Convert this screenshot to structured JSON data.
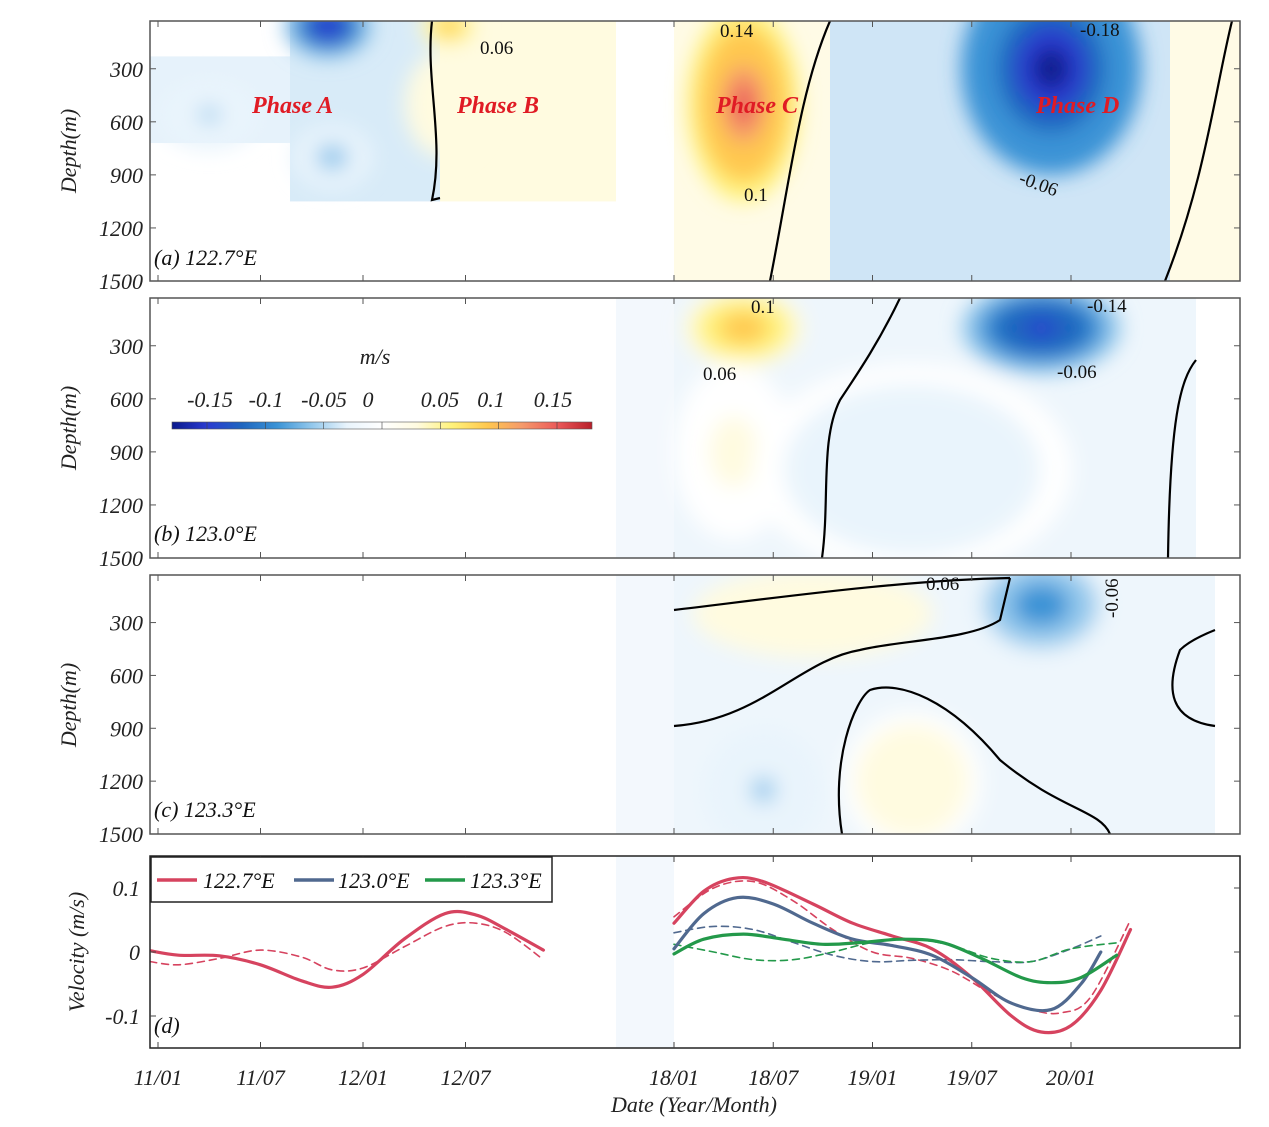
{
  "chart_data": [
    {
      "type": "heatmap",
      "panel": "a",
      "label": "(a) 122.7°E",
      "ylabel": "Depth(m)",
      "yticks": [
        "300",
        "600",
        "900",
        "1200",
        "1500"
      ],
      "ylim": [
        30,
        1500
      ],
      "y_reversed": true,
      "phases": [
        "Phase A",
        "Phase B",
        "Phase C",
        "Phase D"
      ],
      "contour_labels": [
        "0.06",
        "0.14",
        "0.1",
        "-0.18",
        "-0.06"
      ],
      "blobs": [
        {
          "t": 2011.25,
          "depth": 560,
          "value": -0.05,
          "wt": 0.25,
          "wd": 200
        },
        {
          "t": 2011.83,
          "depth": 60,
          "value": -0.16,
          "wt": 0.22,
          "wd": 180
        },
        {
          "t": 2011.85,
          "depth": 800,
          "value": -0.06,
          "wt": 0.2,
          "wd": 180
        },
        {
          "t": 2012.42,
          "depth": 60,
          "value": 0.1,
          "wt": 0.15,
          "wd": 120
        },
        {
          "t": 2012.4,
          "depth": 500,
          "value": 0.04,
          "wt": 0.2,
          "wd": 300
        },
        {
          "t": 2018.35,
          "depth": 500,
          "value": 0.14,
          "wt": 0.28,
          "wd": 550
        },
        {
          "t": 2019.9,
          "depth": 300,
          "value": -0.18,
          "wt": 0.45,
          "wd": 600
        }
      ]
    },
    {
      "type": "heatmap",
      "panel": "b",
      "label": "(b) 123.0°E",
      "ylabel": "Depth(m)",
      "yticks": [
        "300",
        "600",
        "900",
        "1200",
        "1500"
      ],
      "ylim": [
        30,
        1500
      ],
      "y_reversed": true,
      "contour_labels": [
        "0.1",
        "0.06",
        "-0.14",
        "-0.06"
      ],
      "blobs": [
        {
          "t": 2018.35,
          "depth": 200,
          "value": 0.1,
          "wt": 0.3,
          "wd": 220
        },
        {
          "t": 2018.3,
          "depth": 900,
          "value": 0.02,
          "wt": 0.3,
          "wd": 500
        },
        {
          "t": 2019.85,
          "depth": 200,
          "value": -0.15,
          "wt": 0.4,
          "wd": 260
        },
        {
          "t": 2019.2,
          "depth": 1000,
          "value": -0.03,
          "wt": 0.8,
          "wd": 600
        }
      ]
    },
    {
      "type": "heatmap",
      "panel": "c",
      "label": "(c) 123.3°E",
      "ylabel": "Depth(m)",
      "yticks": [
        "300",
        "600",
        "900",
        "1200",
        "1500"
      ],
      "ylim": [
        30,
        1500
      ],
      "y_reversed": true,
      "contour_labels": [
        "0.06",
        "-0.06"
      ],
      "blobs": [
        {
          "t": 2018.7,
          "depth": 250,
          "value": 0.04,
          "wt": 0.6,
          "wd": 250
        },
        {
          "t": 2019.85,
          "depth": 200,
          "value": -0.1,
          "wt": 0.35,
          "wd": 300
        },
        {
          "t": 2018.45,
          "depth": 1250,
          "value": -0.05,
          "wt": 0.3,
          "wd": 350
        },
        {
          "t": 2019.2,
          "depth": 1200,
          "value": 0.03,
          "wt": 0.35,
          "wd": 400
        }
      ]
    },
    {
      "type": "line",
      "panel": "d",
      "label": "(d)",
      "ylabel": "Velocity (m/s)",
      "xlabel": "Date (Year/Month)",
      "ylim": [
        -0.15,
        0.15
      ],
      "yticks": [
        "0.1",
        "0",
        "-0.1"
      ],
      "ytick_values": [
        0.1,
        0,
        -0.1
      ],
      "xticks": [
        "11/01",
        "11/07",
        "12/01",
        "12/07",
        "18/01",
        "18/07",
        "19/01",
        "19/07",
        "20/01"
      ],
      "xtick_values": [
        2011.0,
        2011.5,
        2012.0,
        2012.5,
        2018.0,
        2018.5,
        2019.0,
        2019.5,
        2020.0
      ],
      "legend_placement": "top-left",
      "series": [
        {
          "name": "122.7°E",
          "color": "#d6435f",
          "style": "solid",
          "segments": [
            {
              "t": [
                2010.96,
                2011.1,
                2011.3,
                2011.5,
                2011.7,
                2011.85,
                2012.0,
                2012.2,
                2012.4,
                2012.55,
                2012.7,
                2012.88
              ],
              "v": [
                0.002,
                -0.005,
                -0.006,
                -0.02,
                -0.045,
                -0.055,
                -0.035,
                0.02,
                0.06,
                0.058,
                0.035,
                0.003
              ]
            },
            {
              "t": [
                2018.0,
                2018.15,
                2018.3,
                2018.45,
                2018.7,
                2018.9,
                2019.1,
                2019.3,
                2019.5,
                2019.7,
                2019.85,
                2020.0,
                2020.15,
                2020.3
              ],
              "v": [
                0.045,
                0.095,
                0.115,
                0.11,
                0.075,
                0.045,
                0.025,
                0.005,
                -0.04,
                -0.1,
                -0.125,
                -0.115,
                -0.06,
                0.035
              ]
            }
          ]
        },
        {
          "name": "122.7°E (dashed)",
          "color": "#d6435f",
          "style": "dashed",
          "segments": [
            {
              "t": [
                2010.96,
                2011.1,
                2011.3,
                2011.5,
                2011.7,
                2011.85,
                2012.0,
                2012.2,
                2012.4,
                2012.55,
                2012.7,
                2012.88
              ],
              "v": [
                -0.015,
                -0.02,
                -0.01,
                0.003,
                -0.008,
                -0.028,
                -0.025,
                0.008,
                0.04,
                0.045,
                0.03,
                -0.012
              ]
            },
            {
              "t": [
                2018.0,
                2018.2,
                2018.4,
                2018.6,
                2018.8,
                2019.0,
                2019.2,
                2019.4,
                2019.6,
                2019.8,
                2019.95,
                2020.1,
                2020.3
              ],
              "v": [
                0.055,
                0.1,
                0.11,
                0.08,
                0.035,
                0.0,
                -0.01,
                -0.03,
                -0.065,
                -0.09,
                -0.095,
                -0.07,
                0.05
              ]
            }
          ]
        },
        {
          "name": "123.0°E",
          "color": "#50698f",
          "style": "solid",
          "segments": [
            {
              "t": [
                2018.0,
                2018.15,
                2018.32,
                2018.5,
                2018.7,
                2018.9,
                2019.1,
                2019.3,
                2019.5,
                2019.7,
                2019.9,
                2020.05,
                2020.15
              ],
              "v": [
                0.005,
                0.06,
                0.085,
                0.075,
                0.045,
                0.02,
                0.01,
                -0.005,
                -0.04,
                -0.08,
                -0.09,
                -0.05,
                0.0
              ]
            }
          ]
        },
        {
          "name": "123.0°E (dashed)",
          "color": "#50698f",
          "style": "dashed",
          "segments": [
            {
              "t": [
                2018.0,
                2018.2,
                2018.4,
                2018.6,
                2018.8,
                2019.0,
                2019.2,
                2019.4,
                2019.6,
                2019.8,
                2020.0,
                2020.15
              ],
              "v": [
                0.03,
                0.04,
                0.035,
                0.015,
                -0.005,
                -0.015,
                -0.013,
                -0.012,
                -0.015,
                -0.015,
                0.005,
                0.025
              ]
            }
          ]
        },
        {
          "name": "123.3°E",
          "color": "#23994a",
          "style": "solid",
          "segments": [
            {
              "t": [
                2018.0,
                2018.15,
                2018.35,
                2018.55,
                2018.75,
                2018.95,
                2019.15,
                2019.35,
                2019.55,
                2019.75,
                2019.9,
                2020.05,
                2020.23
              ],
              "v": [
                -0.003,
                0.02,
                0.028,
                0.02,
                0.012,
                0.015,
                0.02,
                0.015,
                -0.01,
                -0.04,
                -0.048,
                -0.04,
                -0.005
              ]
            }
          ]
        },
        {
          "name": "123.3°E (dashed)",
          "color": "#23994a",
          "style": "dashed",
          "segments": [
            {
              "t": [
                2018.0,
                2018.2,
                2018.4,
                2018.6,
                2018.8,
                2019.0,
                2019.2,
                2019.4,
                2019.6,
                2019.8,
                2020.0,
                2020.25
              ],
              "v": [
                0.012,
                0.0,
                -0.012,
                -0.012,
                0.0,
                0.015,
                0.02,
                0.01,
                -0.01,
                -0.015,
                0.005,
                0.015
              ]
            }
          ]
        }
      ]
    }
  ],
  "legend": {
    "entries": [
      {
        "label": "122.7°E",
        "color": "#d6435f"
      },
      {
        "label": "123.0°E",
        "color": "#50698f"
      },
      {
        "label": "123.3°E",
        "color": "#23994a"
      }
    ]
  },
  "colorbar": {
    "unit": "m/s",
    "tick_labels": [
      "-0.15",
      "-0.1",
      "-0.05",
      "0",
      "0.05",
      "0.1",
      "0.15"
    ],
    "tick_values": [
      -0.15,
      -0.1,
      -0.05,
      0,
      0.05,
      0.1,
      0.15
    ],
    "range": [
      -0.18,
      0.18
    ],
    "colors": [
      "#0a1a8c",
      "#2b3bd0",
      "#1f66bf",
      "#3a93d6",
      "#93c8ec",
      "#e9f4fc",
      "#ffffff",
      "#fffbe0",
      "#fff27a",
      "#ffc84f",
      "#f59a6a",
      "#ec5a5a",
      "#b81f2a"
    ]
  },
  "xaxis": {
    "label": "Date (Year/Month)",
    "ticks": [
      "11/01",
      "11/07",
      "12/01",
      "12/07",
      "18/01",
      "18/07",
      "19/01",
      "19/07",
      "20/01"
    ]
  },
  "gap_shading_color": "#f3f8fd"
}
